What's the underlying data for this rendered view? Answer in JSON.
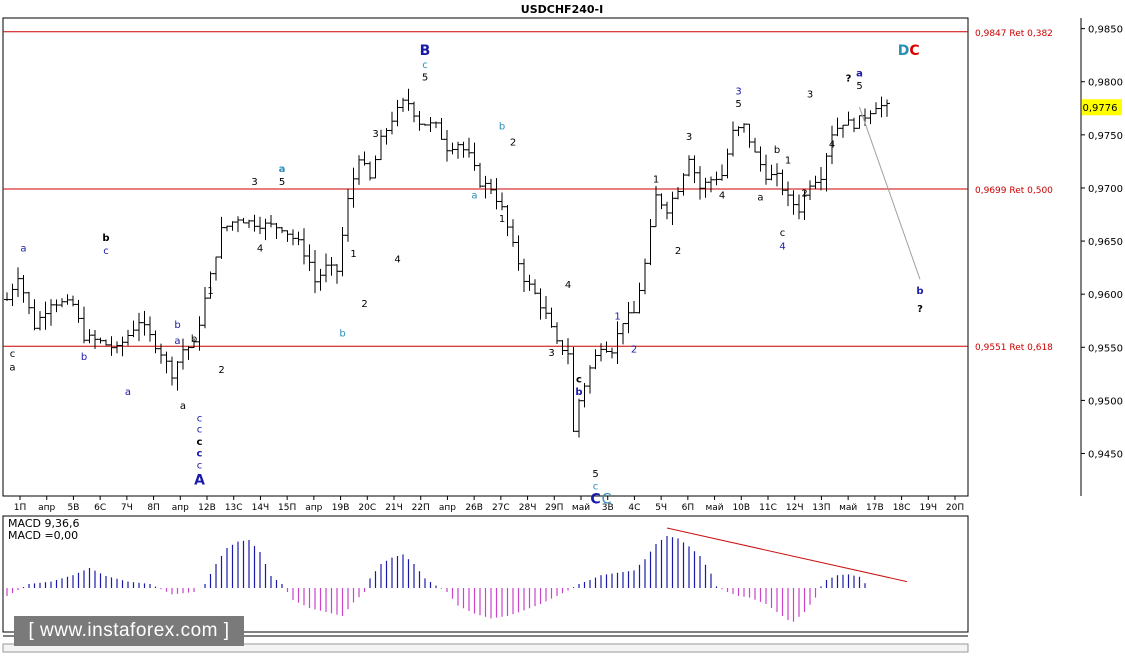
{
  "title": "USDCHF240-I",
  "chart_data": [
    {
      "type": "candlestick",
      "title": "USDCHF240-I",
      "ylim": [
        0.941,
        0.986
      ],
      "y_ticks": [
        "0,9850",
        "0,9800",
        "0,9750",
        "0,9700",
        "0,9650",
        "0,9600",
        "0,9550",
        "0,9500",
        "0,9450"
      ],
      "y_tick_values": [
        0.985,
        0.98,
        0.975,
        0.97,
        0.965,
        0.96,
        0.955,
        0.95,
        0.945
      ],
      "x_ticks": [
        "1П",
        "апр",
        "5В",
        "6С",
        "7Ч",
        "8П",
        "апр",
        "12В",
        "13С",
        "14Ч",
        "15П",
        "апр",
        "19В",
        "20С",
        "21Ч",
        "22П",
        "апр",
        "26В",
        "27С",
        "28Ч",
        "29П",
        "май",
        "3В",
        "4С",
        "5Ч",
        "6П",
        "май",
        "10В",
        "11С",
        "12Ч",
        "13П",
        "май",
        "17В",
        "18С",
        "19Ч",
        "20П"
      ],
      "current_price": 0.9776,
      "current_price_label": "0,9776",
      "levels": [
        {
          "value": 0.9847,
          "label": "0,9847 Ret 0,382"
        },
        {
          "value": 0.9699,
          "label": "0,9699 Ret 0,500"
        },
        {
          "value": 0.9551,
          "label": "0,9551 Ret 0,618"
        }
      ],
      "close_anchors": [
        [
          0,
          0.9595
        ],
        [
          2,
          0.9618
        ],
        [
          5,
          0.957
        ],
        [
          8,
          0.9593
        ],
        [
          12,
          0.959
        ],
        [
          14,
          0.956
        ],
        [
          17,
          0.9555
        ],
        [
          20,
          0.9548
        ],
        [
          24,
          0.9575
        ],
        [
          28,
          0.9545
        ],
        [
          30,
          0.9525
        ],
        [
          32,
          0.9548
        ],
        [
          34,
          0.9552
        ],
        [
          36,
          0.9595
        ],
        [
          39,
          0.966
        ],
        [
          42,
          0.9672
        ],
        [
          44,
          0.9668
        ],
        [
          47,
          0.9665
        ],
        [
          50,
          0.9663
        ],
        [
          53,
          0.9648
        ],
        [
          55,
          0.963
        ],
        [
          56,
          0.9612
        ],
        [
          58,
          0.9625
        ],
        [
          60,
          0.9622
        ],
        [
          62,
          0.9688
        ],
        [
          64,
          0.973
        ],
        [
          66,
          0.9708
        ],
        [
          68,
          0.9745
        ],
        [
          70,
          0.9765
        ],
        [
          72,
          0.978
        ],
        [
          73,
          0.978
        ],
        [
          75,
          0.9762
        ],
        [
          78,
          0.9758
        ],
        [
          80,
          0.9738
        ],
        [
          82,
          0.9742
        ],
        [
          84,
          0.973
        ],
        [
          86,
          0.9705
        ],
        [
          88,
          0.97
        ],
        [
          90,
          0.968
        ],
        [
          92,
          0.9645
        ],
        [
          94,
          0.9615
        ],
        [
          96,
          0.96
        ],
        [
          98,
          0.958
        ],
        [
          100,
          0.9553
        ],
        [
          102,
          0.9545
        ],
        [
          103,
          0.947
        ],
        [
          104,
          0.95
        ],
        [
          106,
          0.953
        ],
        [
          108,
          0.9552
        ],
        [
          110,
          0.9548
        ],
        [
          112,
          0.9575
        ],
        [
          114,
          0.9582
        ],
        [
          116,
          0.9628
        ],
        [
          118,
          0.9692
        ],
        [
          120,
          0.968
        ],
        [
          122,
          0.97
        ],
        [
          124,
          0.973
        ],
        [
          126,
          0.97
        ],
        [
          128,
          0.9708
        ],
        [
          130,
          0.9712
        ],
        [
          132,
          0.9752
        ],
        [
          134,
          0.9758
        ],
        [
          136,
          0.9732
        ],
        [
          138,
          0.9712
        ],
        [
          140,
          0.971
        ],
        [
          142,
          0.969
        ],
        [
          144,
          0.968
        ],
        [
          146,
          0.9705
        ],
        [
          148,
          0.9712
        ],
        [
          150,
          0.9752
        ],
        [
          152,
          0.9762
        ],
        [
          154,
          0.976
        ],
        [
          156,
          0.9768
        ],
        [
          158,
          0.9778
        ],
        [
          160,
          0.9776
        ]
      ],
      "wave_labels": [
        {
          "text": "a",
          "color": "#1a1aa8",
          "x": 3,
          "y": 0.964
        },
        {
          "text": "c",
          "color": "#000000",
          "x": 1,
          "y": 0.9541
        },
        {
          "text": "a",
          "color": "#000000",
          "x": 1,
          "y": 0.9528
        },
        {
          "text": "b",
          "color": "#000000",
          "x": 18,
          "y": 0.965,
          "bold": true
        },
        {
          "text": "c",
          "color": "#1a1aa8",
          "x": 18,
          "y": 0.9638
        },
        {
          "text": "b",
          "color": "#1a1aa8",
          "x": 14,
          "y": 0.9538
        },
        {
          "text": "a",
          "color": "#1a1aa8",
          "x": 22,
          "y": 0.9505
        },
        {
          "text": "b",
          "color": "#1a1aa8",
          "x": 31,
          "y": 0.9568
        },
        {
          "text": "a",
          "color": "#1a1aa8",
          "x": 31,
          "y": 0.9553
        },
        {
          "text": "b",
          "color": "#000000",
          "x": 34,
          "y": 0.9555
        },
        {
          "text": "a",
          "color": "#000000",
          "x": 32,
          "y": 0.9492
        },
        {
          "text": "2",
          "color": "#000000",
          "x": 39,
          "y": 0.9526
        },
        {
          "text": "1",
          "color": "#000000",
          "x": 37,
          "y": 0.96
        },
        {
          "text": "c",
          "color": "#1a1aa8",
          "x": 35,
          "y": 0.948
        },
        {
          "text": "c",
          "color": "#1a1aa8",
          "x": 35,
          "y": 0.947
        },
        {
          "text": "c",
          "color": "#000000",
          "x": 35,
          "y": 0.9458,
          "bold": true
        },
        {
          "text": "c",
          "color": "#1a1aa8",
          "x": 35,
          "y": 0.9447,
          "bold": true
        },
        {
          "text": "c",
          "color": "#1a1aa8",
          "x": 35,
          "y": 0.9436
        },
        {
          "text": "A",
          "color": "#1a1aa8",
          "x": 35,
          "y": 0.9421,
          "bold": true,
          "large": true
        },
        {
          "text": "3",
          "color": "#000000",
          "x": 45,
          "y": 0.9703
        },
        {
          "text": "4",
          "color": "#000000",
          "x": 46,
          "y": 0.964
        },
        {
          "text": "5",
          "color": "#000000",
          "x": 50,
          "y": 0.9703
        },
        {
          "text": "a",
          "color": "#2a8fb8",
          "x": 50,
          "y": 0.9715,
          "bold": true
        },
        {
          "text": "1",
          "color": "#000000",
          "x": 63,
          "y": 0.9635
        },
        {
          "text": "2",
          "color": "#000000",
          "x": 65,
          "y": 0.9588
        },
        {
          "text": "b",
          "color": "#2a8fb8",
          "x": 61,
          "y": 0.956
        },
        {
          "text": "3",
          "color": "#000000",
          "x": 67,
          "y": 0.9748
        },
        {
          "text": "4",
          "color": "#000000",
          "x": 71,
          "y": 0.963
        },
        {
          "text": "B",
          "color": "#1a1aa8",
          "x": 76,
          "y": 0.9825,
          "bold": true,
          "large": true
        },
        {
          "text": "c",
          "color": "#2a8fb8",
          "x": 76,
          "y": 0.9813
        },
        {
          "text": "5",
          "color": "#000000",
          "x": 76,
          "y": 0.9801
        },
        {
          "text": "b",
          "color": "#2a8fb8",
          "x": 90,
          "y": 0.9755
        },
        {
          "text": "a",
          "color": "#2a8fb8",
          "x": 85,
          "y": 0.969
        },
        {
          "text": "2",
          "color": "#000000",
          "x": 92,
          "y": 0.974
        },
        {
          "text": "1",
          "color": "#000000",
          "x": 90,
          "y": 0.9668
        },
        {
          "text": "3",
          "color": "#000000",
          "x": 99,
          "y": 0.9542
        },
        {
          "text": "4",
          "color": "#000000",
          "x": 102,
          "y": 0.9606
        },
        {
          "text": "c",
          "color": "#000000",
          "x": 104,
          "y": 0.9517,
          "bold": true
        },
        {
          "text": "b",
          "color": "#1a1aa8",
          "x": 104,
          "y": 0.9505,
          "bold": true
        },
        {
          "text": "5",
          "color": "#000000",
          "x": 107,
          "y": 0.9428
        },
        {
          "text": "c",
          "color": "#2a8fb8",
          "x": 107,
          "y": 0.9416
        },
        {
          "text": "C",
          "color": "#1a1aa8",
          "x": 107,
          "y": 0.9403,
          "bold": true,
          "large": true
        },
        {
          "text": "C",
          "color": "#2a8fb8",
          "x": 109,
          "y": 0.9403,
          "large": true
        },
        {
          "text": "1",
          "color": "#1a1aa8",
          "x": 111,
          "y": 0.9576
        },
        {
          "text": "2",
          "color": "#1a1aa8",
          "x": 114,
          "y": 0.9545
        },
        {
          "text": "1",
          "color": "#000000",
          "x": 118,
          "y": 0.9705
        },
        {
          "text": "2",
          "color": "#000000",
          "x": 122,
          "y": 0.9638
        },
        {
          "text": "3",
          "color": "#000000",
          "x": 124,
          "y": 0.9745
        },
        {
          "text": "4",
          "color": "#000000",
          "x": 130,
          "y": 0.969
        },
        {
          "text": "3",
          "color": "#1a1aa8",
          "x": 133,
          "y": 0.9788
        },
        {
          "text": "5",
          "color": "#000000",
          "x": 133,
          "y": 0.9776
        },
        {
          "text": "a",
          "color": "#000000",
          "x": 137,
          "y": 0.9688
        },
        {
          "text": "b",
          "color": "#000000",
          "x": 140,
          "y": 0.9733
        },
        {
          "text": "1",
          "color": "#000000",
          "x": 142,
          "y": 0.9723
        },
        {
          "text": "c",
          "color": "#000000",
          "x": 141,
          "y": 0.9655
        },
        {
          "text": "4",
          "color": "#1a1aa8",
          "x": 141,
          "y": 0.9642
        },
        {
          "text": "2",
          "color": "#000000",
          "x": 145,
          "y": 0.9692
        },
        {
          "text": "3",
          "color": "#000000",
          "x": 146,
          "y": 0.9785
        },
        {
          "text": "4",
          "color": "#000000",
          "x": 150,
          "y": 0.9738
        },
        {
          "text": "?",
          "color": "#000000",
          "x": 153,
          "y": 0.98,
          "bold": true
        },
        {
          "text": "a",
          "color": "#1a1aa8",
          "x": 155,
          "y": 0.9805,
          "bold": true
        },
        {
          "text": "5",
          "color": "#000000",
          "x": 155,
          "y": 0.9793
        },
        {
          "text": "D",
          "color": "#2a8fb8",
          "x": 163,
          "y": 0.9825,
          "bold": true,
          "large": true
        },
        {
          "text": "C",
          "color": "#dd0000",
          "x": 165,
          "y": 0.9825,
          "bold": true,
          "large": true
        },
        {
          "text": "b",
          "color": "#1a1aa8",
          "x": 166,
          "y": 0.96,
          "bold": true
        },
        {
          "text": "?",
          "color": "#000000",
          "x": 166,
          "y": 0.9583,
          "bold": true
        }
      ],
      "forecast": {
        "from": [
          155,
          0.9776
        ],
        "to": [
          166,
          0.9614
        ],
        "color": "#a0a0a0"
      }
    },
    {
      "type": "bar",
      "title": "MACD 9,36,6",
      "value_label": "MACD =0,00",
      "positive_color": "#1a1aa8",
      "negative_color": "#cc44cc",
      "ylim": [
        -0.0045,
        0.008
      ],
      "anchors": [
        [
          0,
          -0.001
        ],
        [
          4,
          0.0005
        ],
        [
          8,
          0.0008
        ],
        [
          12,
          0.0016
        ],
        [
          15,
          0.0025
        ],
        [
          18,
          0.0015
        ],
        [
          22,
          0.0008
        ],
        [
          26,
          0.0005
        ],
        [
          30,
          -0.0008
        ],
        [
          34,
          -0.0005
        ],
        [
          36,
          0.0005
        ],
        [
          38,
          0.003
        ],
        [
          40,
          0.005
        ],
        [
          42,
          0.0058
        ],
        [
          44,
          0.006
        ],
        [
          46,
          0.0045
        ],
        [
          48,
          0.0015
        ],
        [
          50,
          0.0005
        ],
        [
          52,
          -0.0015
        ],
        [
          55,
          -0.0025
        ],
        [
          58,
          -0.003
        ],
        [
          61,
          -0.0035
        ],
        [
          63,
          -0.0018
        ],
        [
          65,
          -0.0005
        ],
        [
          66,
          0.0012
        ],
        [
          68,
          0.003
        ],
        [
          70,
          0.0038
        ],
        [
          72,
          0.0042
        ],
        [
          74,
          0.003
        ],
        [
          76,
          0.0012
        ],
        [
          78,
          0.0003
        ],
        [
          80,
          -0.0005
        ],
        [
          82,
          -0.0022
        ],
        [
          85,
          -0.0032
        ],
        [
          88,
          -0.0038
        ],
        [
          91,
          -0.0035
        ],
        [
          94,
          -0.0028
        ],
        [
          97,
          -0.002
        ],
        [
          100,
          -0.001
        ],
        [
          102,
          -0.0003
        ],
        [
          104,
          0.0005
        ],
        [
          106,
          0.001
        ],
        [
          108,
          0.0016
        ],
        [
          110,
          0.0018
        ],
        [
          112,
          0.002
        ],
        [
          114,
          0.0022
        ],
        [
          116,
          0.0036
        ],
        [
          118,
          0.0055
        ],
        [
          120,
          0.0065
        ],
        [
          122,
          0.0062
        ],
        [
          124,
          0.0052
        ],
        [
          126,
          0.004
        ],
        [
          128,
          0.0018
        ],
        [
          129,
          0.0002
        ],
        [
          131,
          -0.0005
        ],
        [
          133,
          -0.001
        ],
        [
          135,
          -0.0012
        ],
        [
          138,
          -0.002
        ],
        [
          140,
          -0.003
        ],
        [
          142,
          -0.004
        ],
        [
          143,
          -0.0042
        ],
        [
          145,
          -0.003
        ],
        [
          147,
          -0.0012
        ],
        [
          148,
          0.0002
        ],
        [
          149,
          0.001
        ],
        [
          151,
          0.0016
        ],
        [
          153,
          0.0017
        ],
        [
          155,
          0.0014
        ],
        [
          156,
          0.0006
        ]
      ],
      "trendline": {
        "from": [
          120,
          0.0075
        ],
        "to": [
          160,
          0.0008
        ],
        "color": "#cc1111"
      }
    }
  ],
  "watermark": {
    "text": "[ www.instaforex.com ]"
  }
}
